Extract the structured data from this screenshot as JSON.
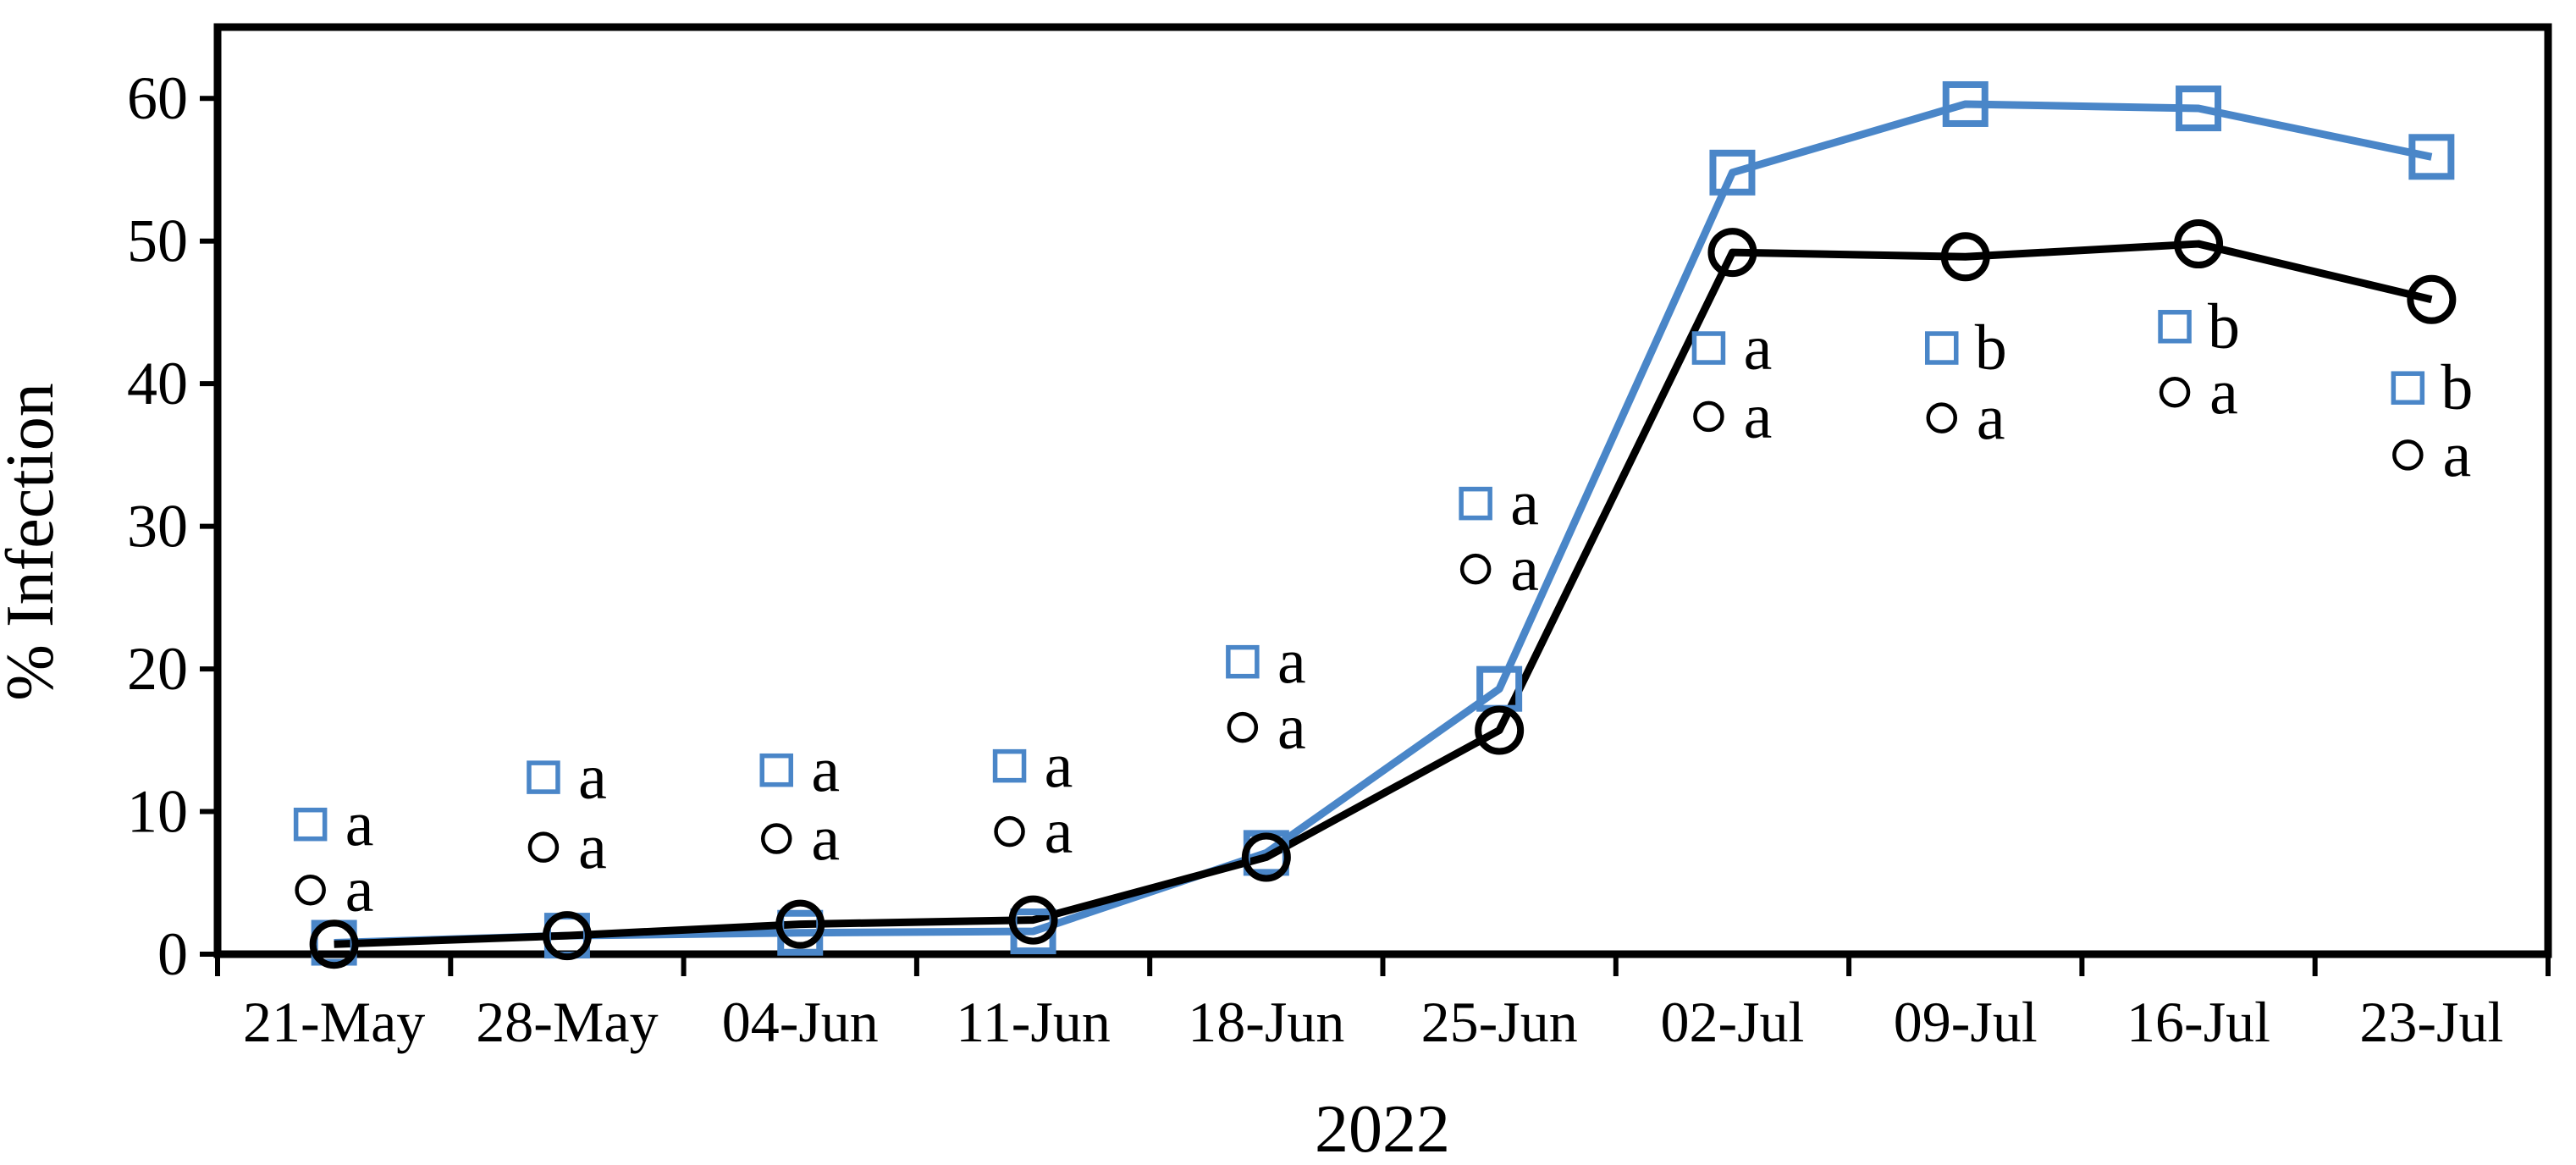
{
  "figure": {
    "kind": "scientific line chart",
    "background": "#ffffff"
  },
  "chart_data": {
    "type": "line",
    "title": "",
    "xlabel": "2022",
    "ylabel": "% Infection",
    "ylim": [
      0,
      65
    ],
    "yticks": [
      0,
      10,
      20,
      30,
      40,
      50,
      60
    ],
    "grid": false,
    "legend_position": "none",
    "categories": [
      "21-May",
      "28-May",
      "04-Jun",
      "11-Jun",
      "18-Jun",
      "25-Jun",
      "02-Jul",
      "09-Jul",
      "16-Jul",
      "23-Jul"
    ],
    "series": [
      {
        "name": "blue-square-series",
        "marker": "open-square",
        "color": "#4a86c8",
        "letter_color": "#2e74b5",
        "values": [
          0.8,
          1.3,
          1.5,
          1.6,
          7.1,
          18.6,
          54.8,
          59.6,
          59.3,
          55.9
        ]
      },
      {
        "name": "black-circle-series",
        "marker": "open-circle",
        "color": "#000000",
        "letter_color": "#000000",
        "values": [
          0.7,
          1.3,
          2.1,
          2.4,
          6.8,
          15.7,
          49.2,
          48.9,
          49.8,
          45.9
        ]
      }
    ],
    "significance_annotations": [
      {
        "category": "21-May",
        "square": {
          "letter": "a",
          "y": 9.1
        },
        "circle": {
          "letter": "a",
          "y": 4.5
        }
      },
      {
        "category": "28-May",
        "square": {
          "letter": "a",
          "y": 12.4
        },
        "circle": {
          "letter": "a",
          "y": 7.5
        }
      },
      {
        "category": "04-Jun",
        "square": {
          "letter": "a",
          "y": 12.9
        },
        "circle": {
          "letter": "a",
          "y": 8.1
        }
      },
      {
        "category": "11-Jun",
        "square": {
          "letter": "a",
          "y": 13.2
        },
        "circle": {
          "letter": "a",
          "y": 8.6
        }
      },
      {
        "category": "18-Jun",
        "square": {
          "letter": "a",
          "y": 20.5
        },
        "circle": {
          "letter": "a",
          "y": 15.9
        }
      },
      {
        "category": "25-Jun",
        "square": {
          "letter": "a",
          "y": 31.6
        },
        "circle": {
          "letter": "a",
          "y": 27.0
        }
      },
      {
        "category": "02-Jul",
        "square": {
          "letter": "a",
          "y": 42.5
        },
        "circle": {
          "letter": "a",
          "y": 37.7
        }
      },
      {
        "category": "09-Jul",
        "square": {
          "letter": "b",
          "y": 42.5
        },
        "circle": {
          "letter": "a",
          "y": 37.6
        }
      },
      {
        "category": "16-Jul",
        "square": {
          "letter": "b",
          "y": 44.0
        },
        "circle": {
          "letter": "a",
          "y": 39.4
        }
      },
      {
        "category": "23-Jul",
        "square": {
          "letter": "b",
          "y": 39.7
        },
        "circle": {
          "letter": "a",
          "y": 35.0
        }
      }
    ]
  }
}
